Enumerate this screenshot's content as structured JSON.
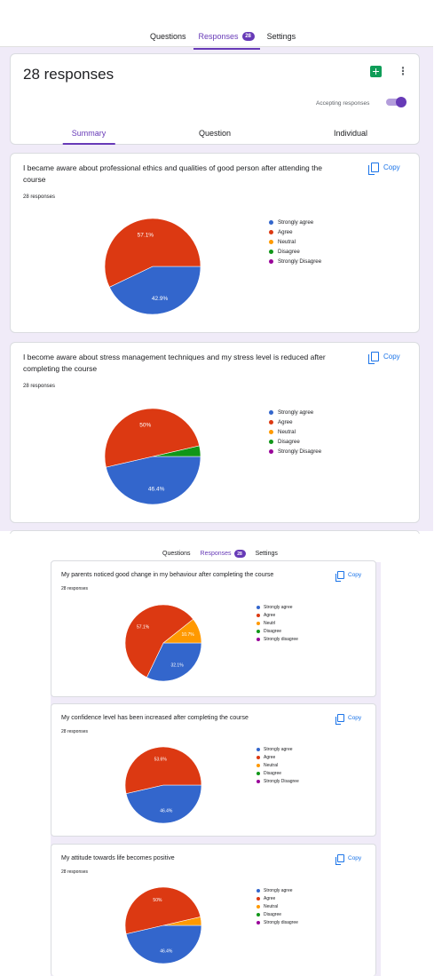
{
  "window_icons": {
    "left": "⊔",
    "right": "⊭"
  },
  "tabs": [
    {
      "label": "Questions",
      "active": false
    },
    {
      "label": "Responses",
      "active": true,
      "badge": "28"
    },
    {
      "label": "Settings",
      "active": false
    }
  ],
  "header": {
    "title": "28 responses",
    "accepting_label": "Accepting responses",
    "accepting_on": true,
    "subtabs": [
      "Summary",
      "Question",
      "Individual"
    ],
    "active_subtab": "Summary"
  },
  "copy_label": "Copy",
  "colors": {
    "strongly_agree": "#3366cc",
    "agree": "#dc3912",
    "neutral": "#ff9900",
    "disagree": "#109618",
    "strongly_disagree": "#990099",
    "accent": "#673ab7",
    "link": "#1a73e8"
  },
  "legend_labels": [
    "Strongly agree",
    "Agree",
    "Neutral",
    "Disagree",
    "Strongly Disagree"
  ],
  "legend_labels_alt": [
    "Strongly agree",
    "Agree",
    "Neutrl",
    "Disagree",
    "Strongly disagree"
  ],
  "legend_labels_alt2": [
    "Strongly agree",
    "Agree",
    "Neutral",
    "Disagree",
    "Strongly disagree"
  ],
  "questions": [
    {
      "title": "I became aware about professional ethics and qualities of good person after attending the course",
      "count": "28 responses",
      "chart_data": {
        "type": "pie",
        "categories": [
          "Strongly agree",
          "Agree",
          "Neutral",
          "Disagree",
          "Strongly Disagree"
        ],
        "values": [
          42.9,
          57.1,
          0,
          0,
          0
        ],
        "labels": [
          "42.9%",
          "57.1%",
          "",
          "",
          ""
        ]
      }
    },
    {
      "title": " I become aware about stress management techniques and my stress level is reduced after completing the course",
      "count": "28 responses",
      "chart_data": {
        "type": "pie",
        "categories": [
          "Strongly agree",
          "Agree",
          "Neutral",
          "Disagree",
          "Strongly Disagree"
        ],
        "values": [
          46.4,
          50,
          0,
          3.6,
          0
        ],
        "labels": [
          "46.4%",
          "50%",
          "",
          "",
          ""
        ]
      }
    },
    {
      "title": "My parents noticed good change in my behaviour after completing the course",
      "count": "28 responses",
      "chart_data": {
        "type": "pie",
        "categories": [
          "Strongly agree",
          "Agree",
          "Neutrl",
          "Disagree",
          "Strongly disagree"
        ],
        "values": [
          32.1,
          57.1,
          10.7,
          0,
          0
        ],
        "labels": [
          "32.1%",
          "57.1%",
          "10.7%",
          "",
          ""
        ]
      }
    },
    {
      "title": "My confidence level has been increased after completing the course",
      "count": "28 responses",
      "chart_data": {
        "type": "pie",
        "categories": [
          "Strongly agree",
          "Agree",
          "Neutral",
          "Disagree",
          "Strongly Disagree"
        ],
        "values": [
          46.4,
          53.6,
          0,
          0,
          0
        ],
        "labels": [
          "46.4%",
          "53.6%",
          "",
          "",
          ""
        ]
      }
    },
    {
      "title": "My attitude towards life becomes positive",
      "count": "28 responses",
      "chart_data": {
        "type": "pie",
        "categories": [
          "Strongly agree",
          "Agree",
          "Neutral",
          "Disagree",
          "Strongly disagree"
        ],
        "values": [
          46.4,
          50,
          3.6,
          0,
          0
        ],
        "labels": [
          "46.4%",
          "50%",
          "",
          "",
          ""
        ]
      }
    }
  ]
}
